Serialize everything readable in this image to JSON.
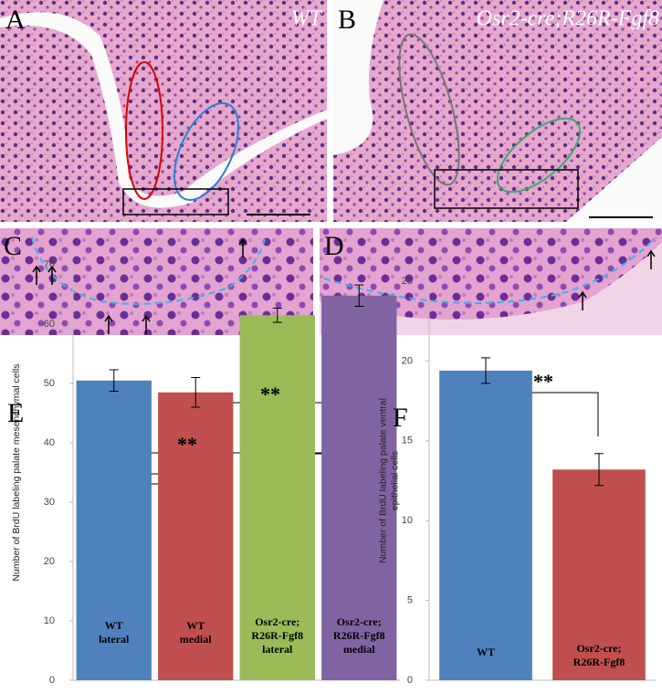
{
  "panels": {
    "A": "A",
    "A_label": "WT",
    "B": "B",
    "B_label": "Osr2-cre;R26R-Fgf8",
    "C": "C",
    "D": "D"
  },
  "chart_data": [
    {
      "type": "bar",
      "panel": "E",
      "y_label": [
        "Number of BrdU labeling palate mesenchymal cells"
      ],
      "categories": [
        [
          "WT",
          "lateral"
        ],
        [
          "WT",
          "medial"
        ],
        [
          "Osr2-cre;",
          "R26R-Fgf8",
          "lateral"
        ],
        [
          "Osr2-cre;",
          "R26R-Fgf8",
          "medial"
        ]
      ],
      "values": [
        50.5,
        48.5,
        61.5,
        64.8
      ],
      "errors": [
        1.8,
        2.5,
        1.2,
        1.8
      ],
      "colors": [
        "#4f81bd",
        "#c0504d",
        "#9bbb59",
        "#8064a2"
      ],
      "ylim": [
        0,
        70
      ],
      "yticks": [
        0,
        10,
        20,
        30,
        40,
        50,
        60,
        70
      ],
      "grid": false,
      "annotations": [
        "**",
        "**"
      ]
    },
    {
      "type": "bar",
      "panel": "F",
      "y_label": [
        "Number of BrdU labeling palate ventral",
        "epithelial cells"
      ],
      "categories": [
        [
          "WT"
        ],
        [
          "Osr2-cre;",
          "R26R-Fgf8"
        ]
      ],
      "values": [
        19.4,
        13.2
      ],
      "errors": [
        0.8,
        1.0
      ],
      "colors": [
        "#4f81bd",
        "#c0504d"
      ],
      "ylim": [
        0,
        25
      ],
      "yticks": [
        0,
        5,
        10,
        15,
        20,
        25
      ],
      "grid": false,
      "annotations": [
        "**"
      ]
    }
  ]
}
